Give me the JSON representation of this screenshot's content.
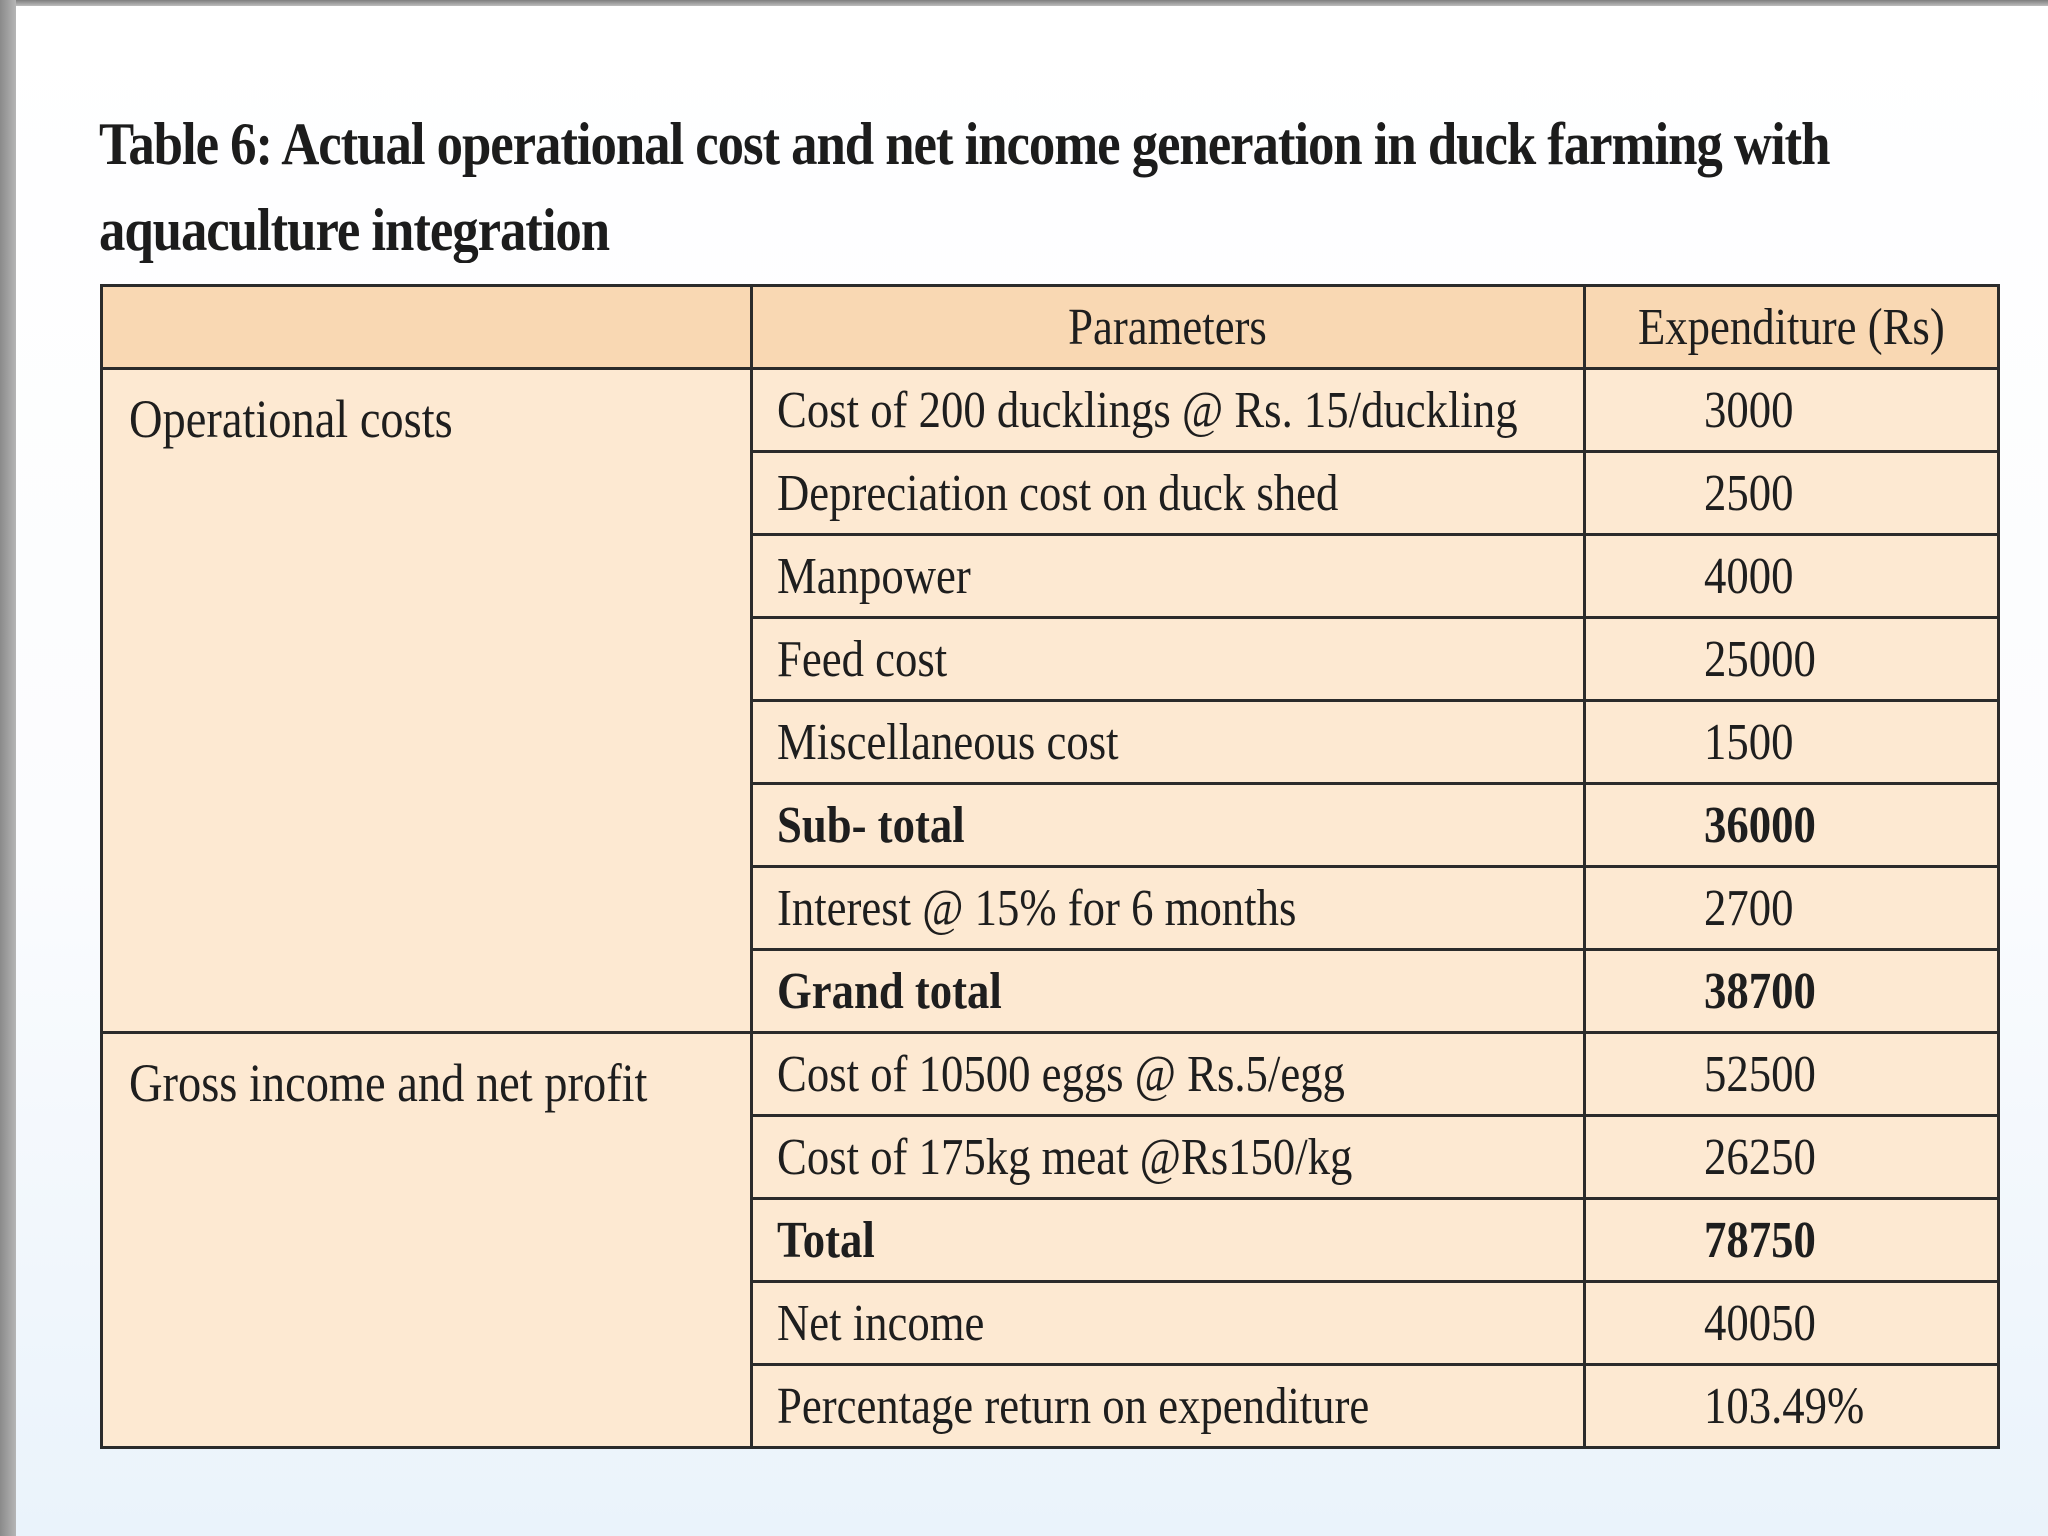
{
  "title": "Table 6: Actual operational cost and net income generation in duck farming with aquaculture integration",
  "table": {
    "headers": [
      "",
      "Parameters",
      "Expenditure (Rs)"
    ],
    "groups": [
      {
        "label": "Operational costs",
        "rows": [
          {
            "parameter": "Cost of 200 ducklings @ Rs. 15/duckling",
            "value": "3000"
          },
          {
            "parameter": "Depreciation cost on duck shed",
            "value": "2500"
          },
          {
            "parameter": "Manpower",
            "value": "4000"
          },
          {
            "parameter": "Feed cost",
            "value": "25000"
          },
          {
            "parameter": "Miscellaneous cost",
            "value": "1500"
          },
          {
            "parameter": "Sub- total",
            "value": "36000"
          },
          {
            "parameter": "Interest @ 15% for 6 months",
            "value": "2700"
          },
          {
            "parameter": "Grand total",
            "value": "38700"
          }
        ]
      },
      {
        "label": "Gross income and net profit",
        "rows": [
          {
            "parameter": "Cost of 10500 eggs @ Rs.5/egg",
            "value": "52500"
          },
          {
            "parameter": "Cost of 175kg meat @Rs150/kg",
            "value": "26250"
          },
          {
            "parameter": "Total",
            "value": "78750"
          },
          {
            "parameter": "Net income",
            "value": "40050"
          },
          {
            "parameter": "Percentage return on expenditure",
            "value": "103.49%"
          }
        ]
      }
    ]
  }
}
